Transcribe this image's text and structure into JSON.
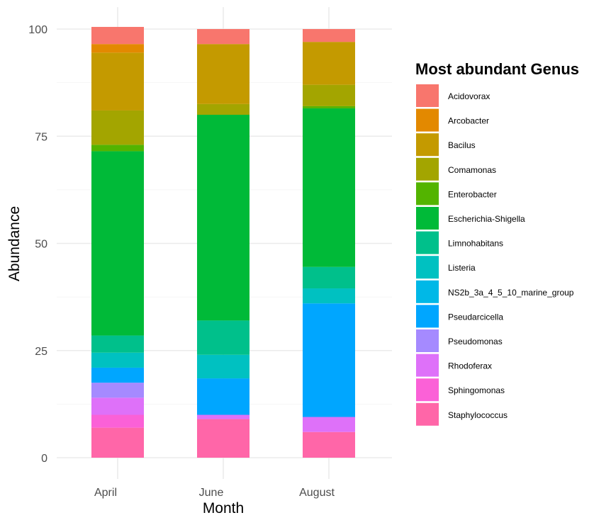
{
  "chart_data": {
    "type": "bar",
    "stacked": true,
    "title": "",
    "xlabel": "Month",
    "ylabel": "Abundance",
    "ylim": [
      0,
      100
    ],
    "yticks": [
      0,
      25,
      50,
      75,
      100
    ],
    "grid": true,
    "legend": {
      "title": "Most abundant Genus",
      "position": "right"
    },
    "categories": [
      "April",
      "June",
      "August"
    ],
    "series": [
      {
        "name": "Staphylococcus",
        "color": "#FF66A8",
        "values": [
          7,
          9,
          6
        ]
      },
      {
        "name": "Sphingomonas",
        "color": "#FB61D7",
        "values": [
          3,
          0,
          0
        ]
      },
      {
        "name": "Rhodoferax",
        "color": "#DE71F9",
        "values": [
          4,
          1,
          3.5
        ]
      },
      {
        "name": "Pseudomonas",
        "color": "#A58AFF",
        "values": [
          3.5,
          0,
          0
        ]
      },
      {
        "name": "Pseudarcicella",
        "color": "#00A6FF",
        "values": [
          3.5,
          8.5,
          26.5
        ]
      },
      {
        "name": "NS2b_3a_4_5_10_marine_group",
        "color": "#00B8E7",
        "values": [
          0,
          0,
          0
        ]
      },
      {
        "name": "Listeria",
        "color": "#00C1C1",
        "values": [
          3.5,
          5.5,
          3.5
        ]
      },
      {
        "name": "Limnohabitans",
        "color": "#00C08B",
        "values": [
          4,
          8,
          5
        ]
      },
      {
        "name": "Escherichia-Shigella",
        "color": "#00BA38",
        "values": [
          43,
          48,
          37
        ]
      },
      {
        "name": "Enterobacter",
        "color": "#53B400",
        "values": [
          1.5,
          0,
          0.5
        ]
      },
      {
        "name": "Comamonas",
        "color": "#A3A500",
        "values": [
          8,
          2.5,
          5
        ]
      },
      {
        "name": "Bacilus",
        "color": "#C49A00",
        "values": [
          13.5,
          14,
          10
        ]
      },
      {
        "name": "Arcobacter",
        "color": "#E38900",
        "values": [
          2,
          0,
          0
        ]
      },
      {
        "name": "Acidovorax",
        "color": "#F8766D",
        "values": [
          4,
          3.5,
          3
        ]
      }
    ]
  }
}
